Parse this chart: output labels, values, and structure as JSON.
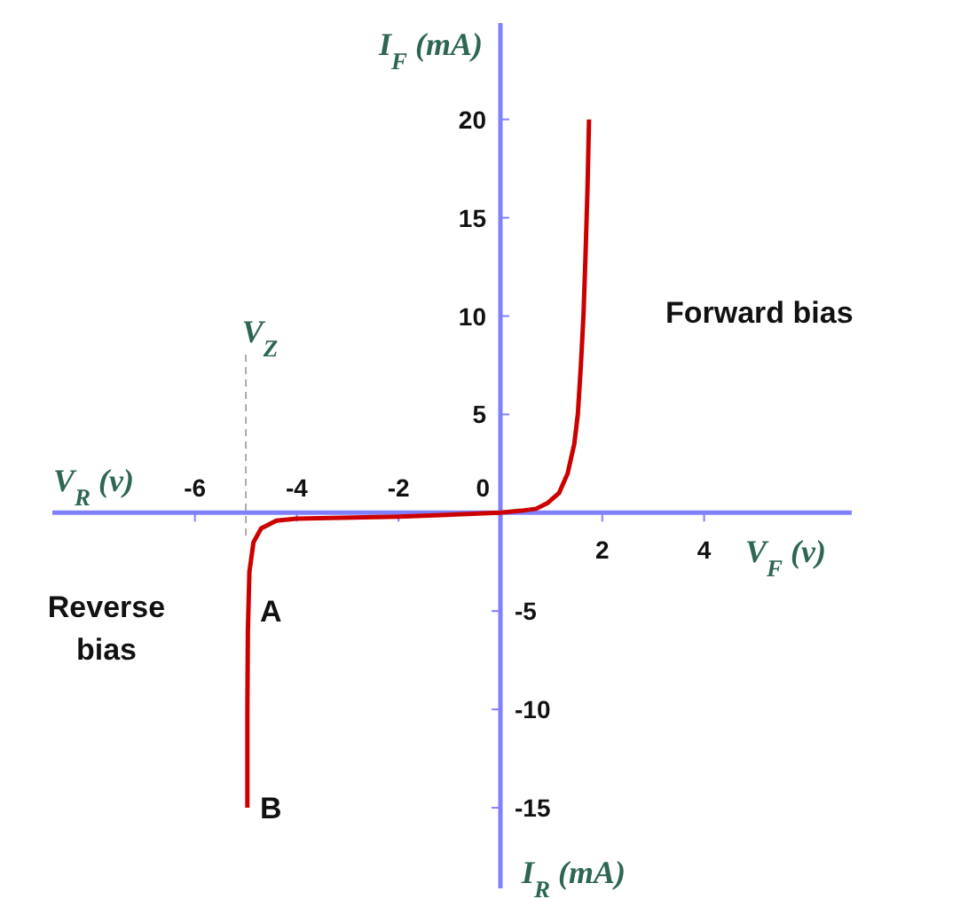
{
  "chart_data": {
    "type": "line",
    "xlabel": "V$_{F}$ (v)",
    "x2label": "V$_{R}$ (v)",
    "ylabel": "I$_{F}$ (mA)",
    "y2label": "I$_{R}$ (mA)",
    "xlim": [
      -8.8,
      6.9
    ],
    "x2lim": [
      -8.8,
      6.9
    ],
    "ylim": [
      -19.1,
      24.9
    ],
    "y2lim": [
      -19.1,
      24.9
    ],
    "xticks": [
      2,
      4
    ],
    "x2ticks": [
      -6,
      -4,
      -2,
      0
    ],
    "yticks": [
      5,
      10,
      15,
      20
    ],
    "y2ticks": [
      -15,
      -10,
      -5
    ],
    "grid": false,
    "marker": "none",
    "line_style": "solid",
    "series": [
      {
        "color": "#cc0000",
        "x": [
          -4.97,
          -4.97,
          -4.96,
          -4.93,
          -4.85,
          -4.7,
          -4.4,
          -4,
          -2,
          0,
          0.4,
          0.7,
          0.93,
          1.15,
          1.32,
          1.45,
          1.52,
          1.58,
          1.63,
          1.67,
          1.71,
          1.74
        ],
        "values": [
          -15,
          -10,
          -6,
          -3,
          -1.5,
          -0.8,
          -0.4,
          -0.3,
          -0.2,
          0,
          0.1,
          0.2,
          0.5,
          1,
          2,
          3.5,
          5,
          7.5,
          10,
          13,
          16.5,
          20
        ]
      }
    ],
    "ref_lines": [
      {
        "axis": "x",
        "value": -5,
        "label": "V$_{Z}$",
        "color": "#aaaaaa",
        "line_style": "dashed"
      }
    ],
    "annotations": [
      "Forward bias",
      "Reverse bias",
      {
        "text": "A",
        "x": -5,
        "y": -5
      },
      {
        "text": "B",
        "x": -5,
        "y": -15
      }
    ]
  }
}
